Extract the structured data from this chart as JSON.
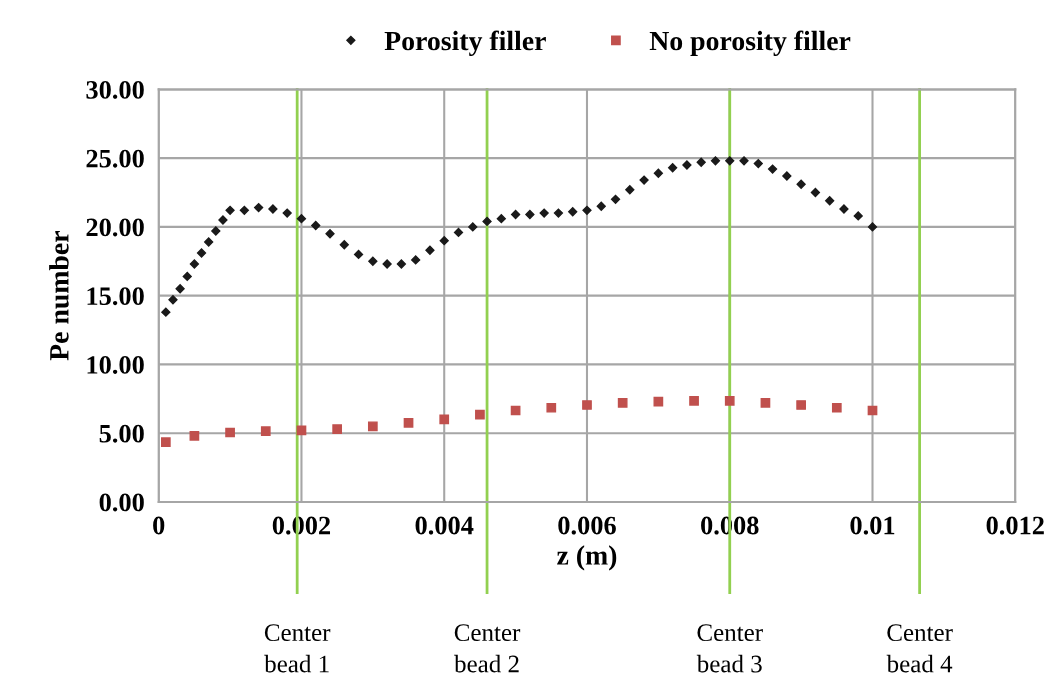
{
  "chart_data": {
    "type": "scatter",
    "xlabel": "z (m)",
    "ylabel": "Pe number",
    "xlim": [
      0,
      0.012
    ],
    "xticks": [
      0,
      0.002,
      0.004,
      0.006,
      0.008,
      0.01,
      0.012
    ],
    "ylim": [
      0,
      30
    ],
    "yticks": [
      {
        "value": 0,
        "label": "0.00"
      },
      {
        "value": 5,
        "label": "5.00"
      },
      {
        "value": 10,
        "label": "10.00"
      },
      {
        "value": 15,
        "label": "15.00"
      },
      {
        "value": 20,
        "label": "20.00"
      },
      {
        "value": 25,
        "label": "25.00"
      },
      {
        "value": 30,
        "label": "30.00"
      }
    ],
    "grid": true,
    "legend": "top",
    "series": [
      {
        "name": "Porosity filler",
        "color": "#1a1a1a",
        "marker": "diamond",
        "x": [
          0.0001,
          0.0002,
          0.0003,
          0.0004,
          0.0005,
          0.0006,
          0.0007,
          0.0008,
          0.0009,
          0.001,
          0.0012,
          0.0014,
          0.0016,
          0.0018,
          0.002,
          0.0022,
          0.0024,
          0.0026,
          0.0028,
          0.003,
          0.0032,
          0.0034,
          0.0036,
          0.0038,
          0.004,
          0.0042,
          0.0044,
          0.0046,
          0.0048,
          0.005,
          0.0052,
          0.0054,
          0.0056,
          0.0058,
          0.006,
          0.0062,
          0.0064,
          0.0066,
          0.0068,
          0.007,
          0.0072,
          0.0074,
          0.0076,
          0.0078,
          0.008,
          0.0082,
          0.0084,
          0.0086,
          0.0088,
          0.009,
          0.0092,
          0.0094,
          0.0096,
          0.0098,
          0.01
        ],
        "values": [
          13.8,
          14.7,
          15.5,
          16.4,
          17.3,
          18.1,
          18.9,
          19.7,
          20.5,
          21.2,
          21.2,
          21.4,
          21.3,
          21.0,
          20.6,
          20.1,
          19.5,
          18.7,
          18.0,
          17.5,
          17.3,
          17.3,
          17.6,
          18.3,
          19.0,
          19.6,
          20.0,
          20.4,
          20.6,
          20.9,
          20.9,
          21.0,
          21.0,
          21.1,
          21.2,
          21.5,
          22.0,
          22.7,
          23.4,
          23.9,
          24.3,
          24.5,
          24.7,
          24.8,
          24.8,
          24.8,
          24.6,
          24.2,
          23.7,
          23.1,
          22.5,
          21.9,
          21.3,
          20.8,
          20.0
        ]
      },
      {
        "name": "No porosity filler",
        "color": "#c0504d",
        "marker": "square",
        "x": [
          0.0001,
          0.0005,
          0.001,
          0.0015,
          0.002,
          0.0025,
          0.003,
          0.0035,
          0.004,
          0.0045,
          0.005,
          0.0055,
          0.006,
          0.0065,
          0.007,
          0.0075,
          0.008,
          0.0085,
          0.009,
          0.0095,
          0.01
        ],
        "values": [
          4.35,
          4.8,
          5.05,
          5.15,
          5.2,
          5.3,
          5.5,
          5.75,
          6.0,
          6.35,
          6.65,
          6.85,
          7.05,
          7.2,
          7.3,
          7.35,
          7.35,
          7.2,
          7.05,
          6.85,
          6.65
        ]
      }
    ],
    "ref_lines": [
      {
        "axis": "x",
        "value": 0.00194,
        "label": "Center\nbead 1",
        "color": "#92d050"
      },
      {
        "axis": "x",
        "value": 0.0046,
        "label": "Center\nbead 2",
        "color": "#92d050"
      },
      {
        "axis": "x",
        "value": 0.008,
        "label": "Center\nbead 3",
        "color": "#92d050"
      },
      {
        "axis": "x",
        "value": 0.01066,
        "label": "Center\nbead 4",
        "color": "#92d050"
      }
    ]
  }
}
